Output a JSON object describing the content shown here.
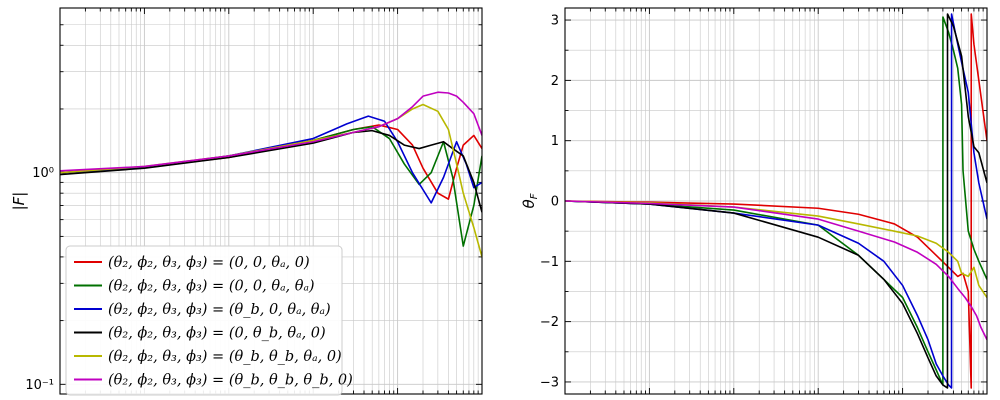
{
  "chart_data": [
    {
      "type": "line",
      "title": "",
      "ylabel": "|F|",
      "xlabel": "",
      "xscale": "log",
      "yscale": "log",
      "xlim": [
        0.01,
        1000
      ],
      "ylim": [
        0.09,
        6
      ],
      "y_tick_labels": [
        {
          "value": 1,
          "label": "10⁰"
        },
        {
          "value": 0.1,
          "label": "10⁻¹"
        }
      ],
      "grid": true,
      "legend_position": "lower-left",
      "series": [
        {
          "name": "(θ₂, ϕ₂, θ₃, ϕ₃) = (0, 0, θₐ, 0)",
          "color": "#e00000",
          "x": [
            0.01,
            0.1,
            1,
            10,
            30,
            60,
            100,
            150,
            200,
            300,
            400,
            500,
            600,
            800,
            1000
          ],
          "y": [
            1.0,
            1.06,
            1.18,
            1.42,
            1.6,
            1.68,
            1.6,
            1.35,
            1.05,
            0.8,
            0.75,
            1.05,
            1.35,
            1.5,
            1.3
          ]
        },
        {
          "name": "(θ₂, ϕ₂, θ₃, ϕ₃) = (0, 0, θₐ, θₐ)",
          "color": "#007000",
          "x": [
            0.01,
            0.1,
            1,
            10,
            30,
            50,
            80,
            120,
            180,
            250,
            350,
            450,
            600,
            800,
            1000
          ],
          "y": [
            1.0,
            1.06,
            1.2,
            1.42,
            1.6,
            1.65,
            1.45,
            1.1,
            0.88,
            1.0,
            1.4,
            0.95,
            0.45,
            0.7,
            1.2
          ]
        },
        {
          "name": "(θ₂, ϕ₂, θ₃, ϕ₃) = (θ_b, 0, θₐ, θₐ)",
          "color": "#0000d0",
          "x": [
            0.01,
            0.1,
            1,
            10,
            25,
            45,
            70,
            100,
            150,
            250,
            350,
            500,
            650,
            800,
            1000
          ],
          "y": [
            1.0,
            1.06,
            1.2,
            1.45,
            1.7,
            1.85,
            1.75,
            1.4,
            1.0,
            0.72,
            0.95,
            1.4,
            1.1,
            0.85,
            0.9
          ]
        },
        {
          "name": "(θ₂, ϕ₂, θ₃, ϕ₃) = (0, θ_b, θₐ, 0)",
          "color": "#000000",
          "x": [
            0.01,
            0.1,
            1,
            10,
            30,
            50,
            80,
            120,
            180,
            250,
            350,
            450,
            600,
            800,
            1000
          ],
          "y": [
            0.98,
            1.05,
            1.18,
            1.38,
            1.55,
            1.58,
            1.5,
            1.35,
            1.3,
            1.35,
            1.4,
            1.3,
            1.2,
            0.9,
            0.65
          ]
        },
        {
          "name": "(θ₂, ϕ₂, θ₃, ϕ₃) = (θ_b, θ_b, θₐ, 0)",
          "color": "#b8b800",
          "x": [
            0.01,
            0.1,
            1,
            10,
            30,
            60,
            100,
            150,
            200,
            300,
            400,
            500,
            600,
            800,
            1000
          ],
          "y": [
            1.0,
            1.07,
            1.2,
            1.42,
            1.55,
            1.65,
            1.8,
            2.0,
            2.1,
            1.95,
            1.6,
            1.1,
            0.8,
            0.55,
            0.4
          ]
        },
        {
          "name": "(θ₂, ϕ₂, θ₃, ϕ₃) = (θ_b, θ_b, θ_b, 0)",
          "color": "#c000c0",
          "x": [
            0.01,
            0.1,
            1,
            10,
            30,
            60,
            100,
            150,
            200,
            300,
            400,
            500,
            600,
            800,
            1000
          ],
          "y": [
            1.02,
            1.07,
            1.2,
            1.4,
            1.55,
            1.65,
            1.8,
            2.05,
            2.3,
            2.4,
            2.38,
            2.3,
            2.15,
            1.9,
            1.5
          ]
        }
      ]
    },
    {
      "type": "line",
      "title": "",
      "ylabel": "θ_F",
      "xlabel": "",
      "xscale": "log",
      "yscale": "linear",
      "xlim": [
        0.01,
        1000
      ],
      "ylim": [
        -3.2,
        3.2
      ],
      "y_tick_labels": [
        {
          "value": 3,
          "label": "3"
        },
        {
          "value": 2,
          "label": "2"
        },
        {
          "value": 1,
          "label": "1"
        },
        {
          "value": 0,
          "label": "0"
        },
        {
          "value": -1,
          "label": "−1"
        },
        {
          "value": -2,
          "label": "−2"
        },
        {
          "value": -3,
          "label": "−3"
        }
      ],
      "grid": true,
      "series": [
        {
          "name": "(θ₂, ϕ₂, θ₃, ϕ₃) = (0, 0, θₐ, 0)",
          "color": "#e00000",
          "x": [
            0.01,
            0.1,
            1,
            10,
            30,
            80,
            150,
            250,
            350,
            450,
            450.5,
            520,
            600,
            650,
            650.5,
            700,
            800,
            1000
          ],
          "y": [
            0,
            -0.02,
            -0.05,
            -0.12,
            -0.22,
            -0.38,
            -0.6,
            -0.9,
            -1.1,
            -1.25,
            -1.25,
            -1.2,
            -1.5,
            -3.1,
            3.1,
            2.6,
            2.0,
            1.0
          ]
        },
        {
          "name": "(θ₂, ϕ₂, θ₃, ϕ₃) = (0, 0, θₐ, θₐ)",
          "color": "#007000",
          "x": [
            0.01,
            0.1,
            1,
            10,
            30,
            60,
            100,
            150,
            200,
            250,
            300,
            300.5,
            350,
            400,
            450,
            500,
            520,
            600,
            700,
            800,
            1000
          ],
          "y": [
            0,
            -0.05,
            -0.15,
            -0.4,
            -0.9,
            -1.3,
            -1.6,
            -2.1,
            -2.5,
            -2.8,
            -3.05,
            3.05,
            2.8,
            2.5,
            2.2,
            1.6,
            0.5,
            -0.5,
            -0.8,
            -1.0,
            -1.3
          ]
        },
        {
          "name": "(θ₂, ϕ₂, θ₃, ϕ₃) = (θ_b, 0, θₐ, θₐ)",
          "color": "#0000d0",
          "x": [
            0.01,
            0.1,
            1,
            10,
            30,
            60,
            100,
            150,
            200,
            250,
            300,
            350,
            380,
            380.5,
            420,
            500,
            600,
            700,
            800,
            1000
          ],
          "y": [
            0,
            -0.05,
            -0.2,
            -0.4,
            -0.7,
            -1.0,
            -1.4,
            -1.9,
            -2.3,
            -2.7,
            -2.9,
            -3.05,
            -3.1,
            3.1,
            2.8,
            2.3,
            1.8,
            0.8,
            0.3,
            -0.3
          ]
        },
        {
          "name": "(θ₂, ϕ₂, θ₃, ϕ₃) = (0, θ_b, θₐ, 0)",
          "color": "#000000",
          "x": [
            0.01,
            0.1,
            1,
            10,
            30,
            60,
            100,
            150,
            200,
            250,
            300,
            340,
            340.5,
            400,
            500,
            600,
            700,
            800,
            1000
          ],
          "y": [
            0,
            -0.05,
            -0.2,
            -0.6,
            -0.9,
            -1.3,
            -1.7,
            -2.2,
            -2.6,
            -2.9,
            -3.05,
            -3.1,
            3.1,
            2.9,
            2.4,
            1.4,
            0.9,
            0.8,
            0.3
          ]
        },
        {
          "name": "(θ₂, ϕ₂, θ₃, ϕ₃) = (θ_b, θ_b, θₐ, 0)",
          "color": "#b8b800",
          "x": [
            0.01,
            0.1,
            1,
            10,
            30,
            80,
            150,
            250,
            350,
            450,
            500,
            600,
            700,
            800,
            1000
          ],
          "y": [
            0,
            -0.03,
            -0.1,
            -0.25,
            -0.38,
            -0.5,
            -0.58,
            -0.7,
            -0.85,
            -1.0,
            -1.2,
            -1.25,
            -1.1,
            -1.4,
            -1.6
          ]
        },
        {
          "name": "(θ₂, ϕ₂, θ₃, ϕ₃) = (θ_b, θ_b, θ_b, 0)",
          "color": "#c000c0",
          "x": [
            0.01,
            0.1,
            1,
            10,
            30,
            80,
            150,
            250,
            350,
            450,
            550,
            650,
            750,
            850,
            1000
          ],
          "y": [
            0,
            -0.04,
            -0.1,
            -0.3,
            -0.5,
            -0.68,
            -0.85,
            -1.05,
            -1.25,
            -1.45,
            -1.6,
            -1.75,
            -1.9,
            -2.1,
            -2.3
          ]
        }
      ]
    }
  ]
}
